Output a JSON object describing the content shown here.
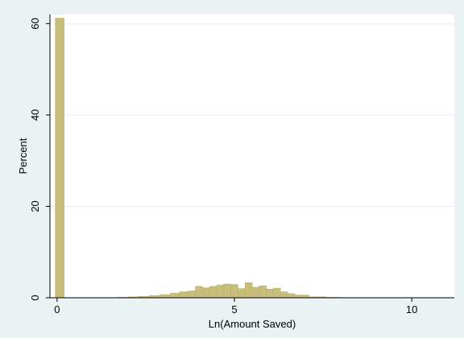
{
  "chart_data": {
    "type": "bar",
    "xlabel": "Ln(Amount Saved)",
    "ylabel": "Percent",
    "xlim": [
      -0.2,
      11.2
    ],
    "ylim": [
      0,
      62
    ],
    "xticks": [
      0,
      5,
      10
    ],
    "yticks": [
      0,
      20,
      40,
      60
    ],
    "grid": true,
    "bar_color": "#c8be7b",
    "bar_edge_color": "#b6ac62",
    "background_color": "#eaf2f3",
    "plot_background_color": "#ffffff",
    "bins": [
      {
        "x0": -0.05,
        "x1": 0.2,
        "value": 61.2
      },
      {
        "x0": 0.2,
        "x1": 1.7,
        "value": 0.05
      },
      {
        "x0": 1.7,
        "x1": 2.0,
        "value": 0.1
      },
      {
        "x0": 2.0,
        "x1": 2.3,
        "value": 0.2
      },
      {
        "x0": 2.3,
        "x1": 2.6,
        "value": 0.3
      },
      {
        "x0": 2.6,
        "x1": 2.9,
        "value": 0.5
      },
      {
        "x0": 2.9,
        "x1": 3.2,
        "value": 0.7
      },
      {
        "x0": 3.2,
        "x1": 3.45,
        "value": 1.0
      },
      {
        "x0": 3.45,
        "x1": 3.7,
        "value": 1.3
      },
      {
        "x0": 3.7,
        "x1": 3.9,
        "value": 1.5
      },
      {
        "x0": 3.9,
        "x1": 4.1,
        "value": 2.5
      },
      {
        "x0": 4.1,
        "x1": 4.3,
        "value": 2.2
      },
      {
        "x0": 4.3,
        "x1": 4.5,
        "value": 2.5
      },
      {
        "x0": 4.5,
        "x1": 4.7,
        "value": 2.8
      },
      {
        "x0": 4.7,
        "x1": 4.9,
        "value": 3.0
      },
      {
        "x0": 4.9,
        "x1": 5.1,
        "value": 2.9
      },
      {
        "x0": 5.1,
        "x1": 5.3,
        "value": 2.0
      },
      {
        "x0": 5.3,
        "x1": 5.5,
        "value": 3.3
      },
      {
        "x0": 5.5,
        "x1": 5.7,
        "value": 2.3
      },
      {
        "x0": 5.7,
        "x1": 5.9,
        "value": 2.6
      },
      {
        "x0": 5.9,
        "x1": 6.1,
        "value": 1.9
      },
      {
        "x0": 6.1,
        "x1": 6.3,
        "value": 2.1
      },
      {
        "x0": 6.3,
        "x1": 6.5,
        "value": 1.3
      },
      {
        "x0": 6.5,
        "x1": 6.7,
        "value": 0.9
      },
      {
        "x0": 6.7,
        "x1": 6.9,
        "value": 0.6
      },
      {
        "x0": 6.9,
        "x1": 7.1,
        "value": 0.6
      },
      {
        "x0": 7.1,
        "x1": 7.35,
        "value": 0.2
      },
      {
        "x0": 7.35,
        "x1": 7.6,
        "value": 0.2
      },
      {
        "x0": 7.6,
        "x1": 8.0,
        "value": 0.1
      },
      {
        "x0": 8.0,
        "x1": 11.2,
        "value": 0.05
      }
    ]
  }
}
